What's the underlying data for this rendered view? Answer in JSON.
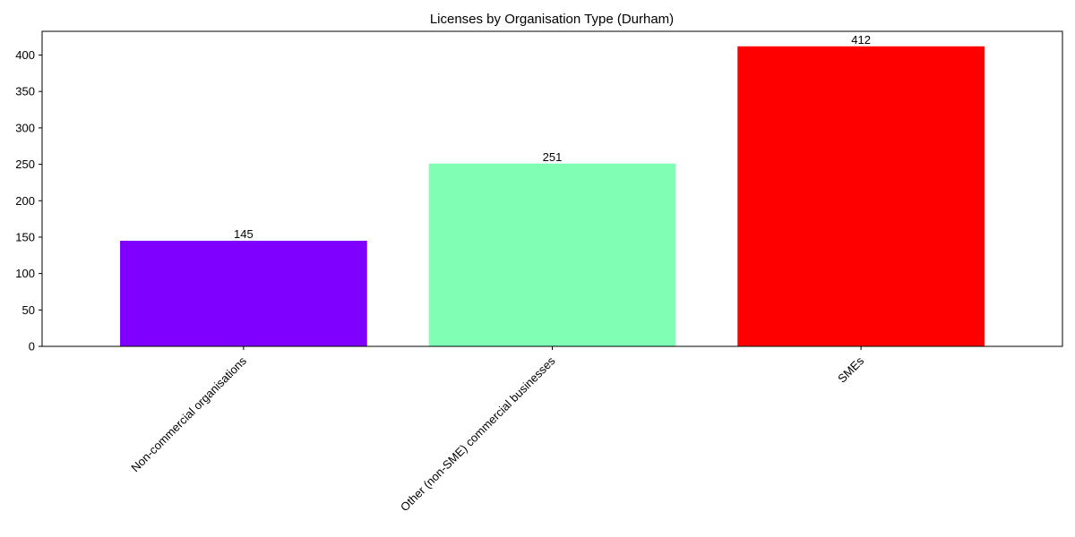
{
  "chart_data": {
    "type": "bar",
    "title": "Licenses by Organisation Type (Durham)",
    "xlabel": "",
    "ylabel": "",
    "categories": [
      "Non-commercial organisations",
      "Other (non-SME) commercial businesses",
      "SMEs"
    ],
    "values": [
      145,
      251,
      412
    ],
    "data_labels": [
      "145",
      "251",
      "412"
    ],
    "colors": [
      "#8000ff",
      "#80ffb4",
      "#ff0000"
    ],
    "ylim": [
      0,
      432.6
    ],
    "yticks": [
      0,
      50,
      100,
      150,
      200,
      250,
      300,
      350,
      400
    ],
    "ytick_labels": [
      "0",
      "50",
      "100",
      "150",
      "200",
      "250",
      "300",
      "350",
      "400"
    ],
    "grid": false,
    "legend": "none",
    "xtick_rotation": 45
  }
}
